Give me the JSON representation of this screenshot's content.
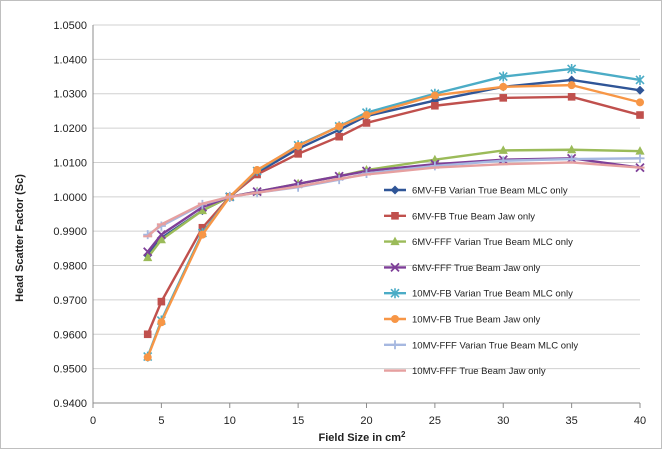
{
  "chart_data": {
    "type": "line",
    "title": "",
    "xlabel": "Field Size in cm",
    "xlabel_sup": "2",
    "ylabel": "Head Scatter Factor (Sc)",
    "xlim": [
      0,
      40
    ],
    "ylim": [
      0.94,
      1.05
    ],
    "x_ticks": [
      0,
      5,
      10,
      15,
      20,
      25,
      30,
      35,
      40
    ],
    "y_ticks": [
      0.94,
      0.95,
      0.96,
      0.97,
      0.98,
      0.99,
      1.0,
      1.01,
      1.02,
      1.03,
      1.04,
      1.05
    ],
    "y_tick_labels": [
      "0.9400",
      "0.9500",
      "0.9600",
      "0.9700",
      "0.9800",
      "0.9900",
      "1.0000",
      "1.0100",
      "1.0200",
      "1.0300",
      "1.0400",
      "1.0500"
    ],
    "grid": "horizontal",
    "legend_position": "right",
    "x": [
      4,
      5,
      8,
      10,
      12,
      15,
      18,
      20,
      25,
      30,
      35,
      40
    ],
    "series": [
      {
        "name": "6MV-FB Varian True Beam MLC only",
        "color": "#2F5597",
        "marker": "diamond",
        "values": [
          0.983,
          0.988,
          0.996,
          1.0,
          1.007,
          1.014,
          1.0195,
          1.0235,
          1.028,
          1.032,
          1.034,
          1.031
        ]
      },
      {
        "name": "6MV-FB True Beam Jaw only",
        "color": "#C0504D",
        "marker": "square",
        "values": [
          0.96,
          0.9695,
          0.991,
          1.0,
          1.0065,
          1.0125,
          1.0175,
          1.0215,
          1.0265,
          1.0288,
          1.0291,
          1.0238
        ]
      },
      {
        "name": "6MV-FFF Varian True Beam  MLC only",
        "color": "#9BBB59",
        "marker": "triangle",
        "values": [
          0.9823,
          0.9875,
          0.996,
          1.0,
          1.0015,
          1.0038,
          1.006,
          1.0078,
          1.0108,
          1.0135,
          1.0137,
          1.0133
        ]
      },
      {
        "name": "6MV-FFF True Beam Jaw only",
        "color": "#7E3F98",
        "marker": "x",
        "values": [
          0.984,
          0.989,
          0.997,
          1.0,
          1.0015,
          1.0038,
          1.006,
          1.0075,
          1.0095,
          1.0108,
          1.0112,
          1.0085
        ]
      },
      {
        "name": "10MV-FB Varian True Beam MLC only",
        "color": "#4BACC6",
        "marker": "star",
        "values": [
          0.9535,
          0.964,
          0.9895,
          1.0,
          1.0075,
          1.015,
          1.0205,
          1.0245,
          1.03,
          1.035,
          1.0372,
          1.034
        ]
      },
      {
        "name": "10MV-FB True Beam Jaw only",
        "color": "#F79646",
        "marker": "circle",
        "values": [
          0.9533,
          0.9635,
          0.989,
          1.0,
          1.0078,
          1.0148,
          1.0205,
          1.0238,
          1.0295,
          1.032,
          1.0325,
          1.0275
        ]
      },
      {
        "name": "10MV-FFF Varian True Beam  MLC only",
        "color": "#A6B8E0",
        "marker": "plus",
        "values": [
          0.989,
          0.9915,
          0.9978,
          1.0,
          1.0012,
          1.0028,
          1.005,
          1.0068,
          1.009,
          1.0105,
          1.011,
          1.0112
        ]
      },
      {
        "name": "10MV-FFF True Beam Jaw only",
        "color": "#E6A0A0",
        "marker": "dash",
        "values": [
          0.9885,
          0.992,
          0.998,
          1.0,
          1.0012,
          1.003,
          1.0052,
          1.0065,
          1.0085,
          1.0095,
          1.01,
          1.0085
        ]
      }
    ]
  }
}
